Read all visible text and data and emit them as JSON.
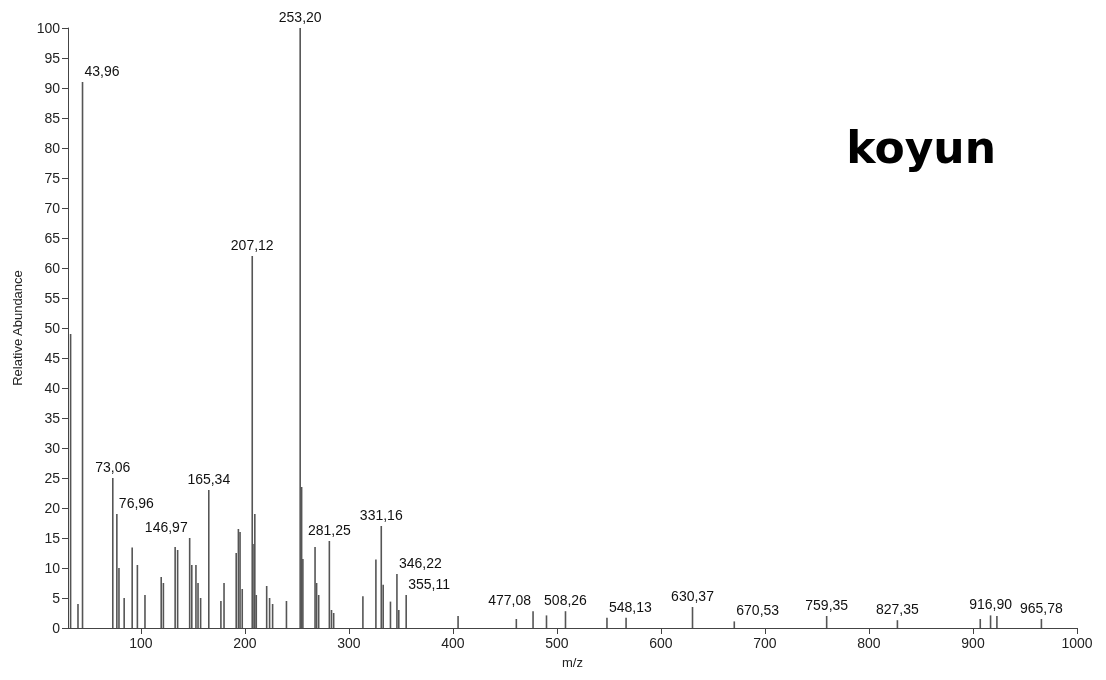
{
  "chart_data": {
    "type": "bar",
    "xlabel": "m/z",
    "ylabel": "Relative Abundance",
    "annotations": [
      "koyun",
      {
        "text": "43,96",
        "x": 43.96,
        "y": 91
      },
      {
        "text": "73,06",
        "x": 73.06,
        "y": 25
      },
      {
        "text": "76,96",
        "x": 76.96,
        "y": 19
      },
      {
        "text": "146,97",
        "x": 146.97,
        "y": 15
      },
      {
        "text": "165,34",
        "x": 165.34,
        "y": 23
      },
      {
        "text": "207,12",
        "x": 207.12,
        "y": 62
      },
      {
        "text": "253,20",
        "x": 253.2,
        "y": 100
      },
      {
        "text": "281,25",
        "x": 281.25,
        "y": 14.5
      },
      {
        "text": "331,16",
        "x": 331.16,
        "y": 17
      },
      {
        "text": "346,22",
        "x": 346.22,
        "y": 9
      },
      {
        "text": "355,11",
        "x": 355.11,
        "y": 5.5
      },
      {
        "text": "477,08",
        "x": 477.08,
        "y": 2.8
      },
      {
        "text": "508,26",
        "x": 508.26,
        "y": 2.8
      },
      {
        "text": "548,13",
        "x": 548.13,
        "y": 1.7
      },
      {
        "text": "630,37",
        "x": 630.37,
        "y": 3.5
      },
      {
        "text": "670,53",
        "x": 670.53,
        "y": 1.1
      },
      {
        "text": "759,35",
        "x": 759.35,
        "y": 2
      },
      {
        "text": "827,35",
        "x": 827.35,
        "y": 1.3
      },
      {
        "text": "916,90",
        "x": 916.9,
        "y": 2.1
      },
      {
        "text": "965,78",
        "x": 965.78,
        "y": 1.5
      }
    ],
    "x": [
      32.5,
      39.6,
      43.96,
      73.06,
      76.96,
      79,
      84,
      91.7,
      96.7,
      104,
      119.6,
      121.7,
      133,
      135.4,
      146.97,
      149,
      153,
      155,
      157.5,
      165.34,
      177,
      180,
      191.7,
      193.8,
      195.4,
      197.5,
      207.12,
      208.8,
      209.6,
      211,
      221,
      223.8,
      226.7,
      240,
      253.2,
      254.6,
      255.8,
      267.5,
      269,
      271,
      281.25,
      283.3,
      285.4,
      313.5,
      326,
      331.16,
      333,
      340,
      346.22,
      348,
      355.11,
      405,
      461,
      477.08,
      490,
      508.26,
      548.13,
      566.5,
      630.37,
      670.53,
      759.35,
      827.35,
      907,
      916.9,
      923,
      965.78
    ],
    "values": [
      49,
      4,
      91,
      25,
      19,
      10,
      5,
      13.4,
      10.5,
      5.5,
      8.5,
      7.5,
      13.5,
      13,
      15,
      10.5,
      10.5,
      7.5,
      5,
      23,
      4.5,
      7.5,
      12.5,
      16.5,
      16,
      6.5,
      62,
      14,
      19,
      5.5,
      7,
      5,
      4,
      4.5,
      100,
      23.5,
      11.5,
      13.5,
      7.5,
      5.5,
      14.5,
      3,
      2.5,
      5.3,
      11.4,
      17,
      7.2,
      4.4,
      9,
      3,
      5.5,
      2,
      1.5,
      2.8,
      2.1,
      2.8,
      1.7,
      1.7,
      3.5,
      1.1,
      2,
      1.3,
      1.5,
      2.1,
      2,
      1.5
    ],
    "color": "#555555",
    "xlim": [
      30,
      1000
    ],
    "xticks": [
      100,
      200,
      300,
      400,
      500,
      600,
      700,
      800,
      900,
      1000
    ],
    "ylim": [
      0,
      100
    ],
    "yticks": [
      0,
      5,
      10,
      15,
      20,
      25,
      30,
      35,
      40,
      45,
      50,
      55,
      60,
      65,
      70,
      75,
      80,
      85,
      90,
      95,
      100
    ],
    "grid": false
  }
}
